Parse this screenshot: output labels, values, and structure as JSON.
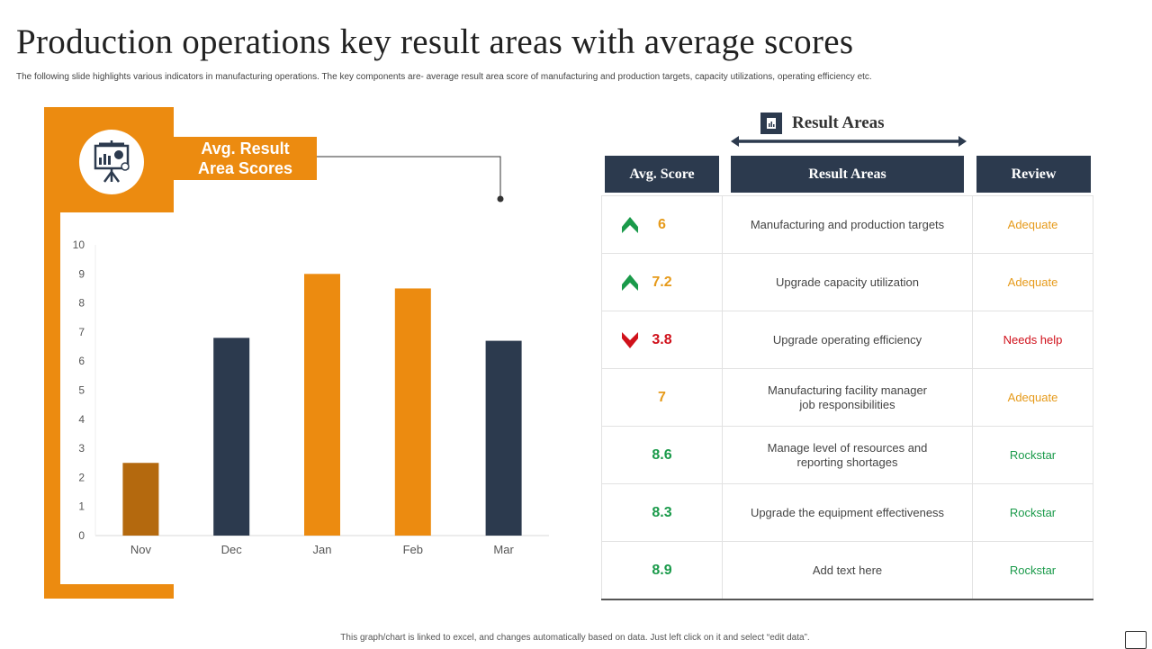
{
  "header": {
    "title": "Production operations key result areas with average scores",
    "subtitle": "The following slide highlights various indicators in manufacturing operations. The key components are- average result area score of manufacturing and production targets, capacity utilizations, operating efficiency etc."
  },
  "left_panel": {
    "label_line1": "Avg. Result",
    "label_line2": "Area Scores",
    "icon": "presentation-chart-icon"
  },
  "chart_data": {
    "type": "bar",
    "categories": [
      "Nov",
      "Dec",
      "Jan",
      "Feb",
      "Mar"
    ],
    "values": [
      2.5,
      6.8,
      9.0,
      8.5,
      6.7
    ],
    "bar_colors": [
      "#b4690e",
      "#2c3a4e",
      "#ec8b10",
      "#ec8b10",
      "#2c3a4e"
    ],
    "ylim": [
      0,
      10
    ],
    "yticks": [
      0,
      1,
      2,
      3,
      4,
      5,
      6,
      7,
      8,
      9,
      10
    ],
    "grid": false,
    "title": "",
    "xlabel": "",
    "ylabel": ""
  },
  "result_areas": {
    "title": "Result Areas",
    "icon": "document-chart-icon",
    "columns": [
      "Avg. Score",
      "Result Areas",
      "Review"
    ],
    "rows": [
      {
        "score": "6",
        "trend": "up",
        "area": "Manufacturing  and production targets",
        "review": "Adequate",
        "score_color": "#e69a1a",
        "review_color": "#e69a1a"
      },
      {
        "score": "7.2",
        "trend": "up",
        "area": "Upgrade  capacity utilization",
        "review": "Adequate",
        "score_color": "#e69a1a",
        "review_color": "#e69a1a"
      },
      {
        "score": "3.8",
        "trend": "down",
        "area": "Upgrade  operating efficiency",
        "review": "Needs help",
        "score_color": "#d0111b",
        "review_color": "#d0111b"
      },
      {
        "score": "7",
        "trend": "none",
        "area": "Manufacturing  facility manager\njob responsibilities",
        "review": "Adequate",
        "score_color": "#e69a1a",
        "review_color": "#e69a1a"
      },
      {
        "score": "8.6",
        "trend": "none",
        "area": "Manage level of resources and\nreporting shortages",
        "review": "Rockstar",
        "score_color": "#1a9a4a",
        "review_color": "#1a9a4a"
      },
      {
        "score": "8.3",
        "trend": "none",
        "area": "Upgrade  the equipment  effectiveness",
        "review": "Rockstar",
        "score_color": "#1a9a4a",
        "review_color": "#1a9a4a"
      },
      {
        "score": "8.9",
        "trend": "none",
        "area": "Add text here",
        "review": "Rockstar",
        "score_color": "#1a9a4a",
        "review_color": "#1a9a4a"
      }
    ]
  },
  "footer": {
    "note": "This graph/chart is linked to excel, and changes automatically based on data. Just left click on it and select “edit data”."
  },
  "colors": {
    "orange": "#ec8b10",
    "navy": "#2c3a4e",
    "up_green": "#1a9a4a",
    "down_red": "#d0111b"
  }
}
